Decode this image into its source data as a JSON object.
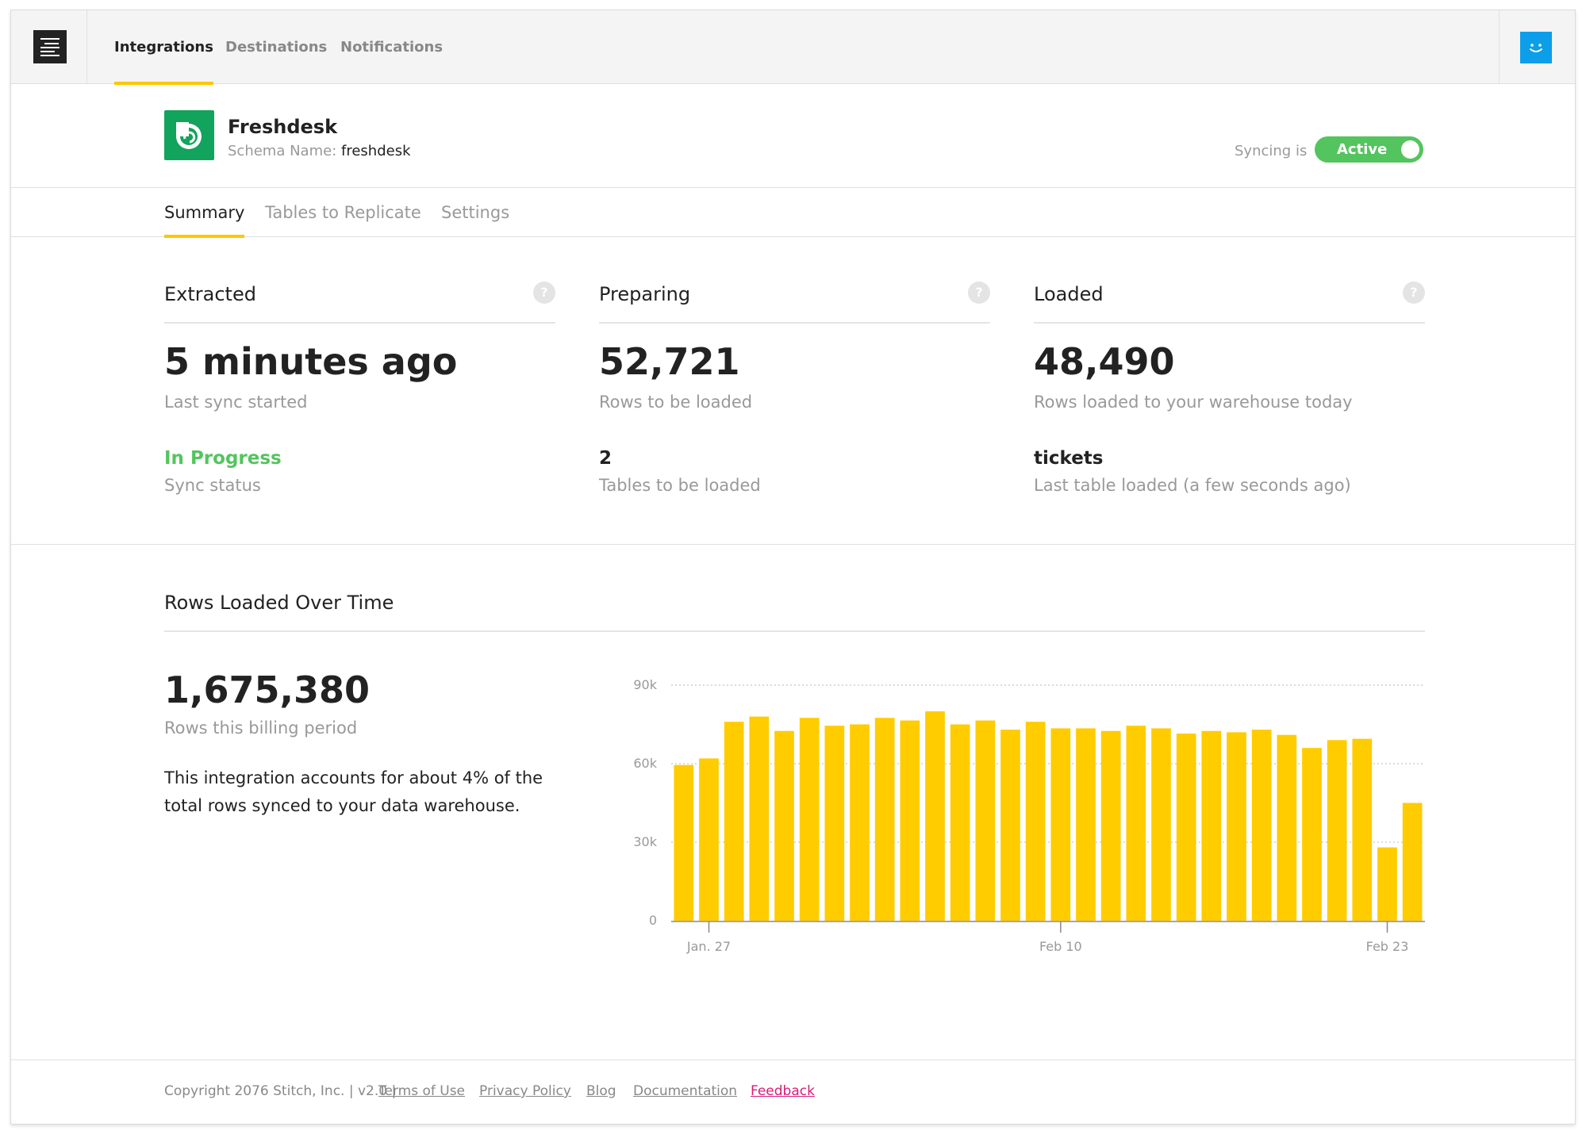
{
  "nav": {
    "items": [
      {
        "label": "Integrations",
        "active": true
      },
      {
        "label": "Destinations",
        "active": false
      },
      {
        "label": "Notifications",
        "active": false
      }
    ]
  },
  "integration": {
    "name": "Freshdesk",
    "schema_label": "Schema Name:",
    "schema_value": "freshdesk",
    "sync_label": "Syncing is",
    "sync_state": "Active"
  },
  "tabs": [
    {
      "label": "Summary",
      "active": true
    },
    {
      "label": "Tables to Replicate",
      "active": false
    },
    {
      "label": "Settings",
      "active": false
    }
  ],
  "stats": {
    "extracted": {
      "title": "Extracted",
      "big": "5 minutes ago",
      "big_caption": "Last sync started",
      "mid": "In Progress",
      "mid_caption": "Sync status"
    },
    "preparing": {
      "title": "Preparing",
      "big": "52,721",
      "big_caption": "Rows to be loaded",
      "mid": "2",
      "mid_caption": "Tables to be loaded"
    },
    "loaded": {
      "title": "Loaded",
      "big": "48,490",
      "big_caption": "Rows loaded to your warehouse today",
      "mid": "tickets",
      "mid_caption": "Last table loaded (a few seconds ago)"
    },
    "help_glyph": "?"
  },
  "rows_over_time": {
    "title": "Rows Loaded Over Time",
    "total": "1,675,380",
    "total_caption": "Rows this billing period",
    "blurb": "This integration accounts for about 4% of the total rows synced to your data warehouse."
  },
  "chart_data": {
    "type": "bar",
    "title": "",
    "xlabel": "",
    "ylabel": "",
    "ylim": [
      0,
      90000
    ],
    "yticks": [
      0,
      30000,
      60000,
      90000
    ],
    "ytick_labels": [
      "0",
      "30k",
      "60k",
      "90k"
    ],
    "grid": true,
    "categories": [
      "Jan 26",
      "Jan 27",
      "Jan 28",
      "Jan 29",
      "Jan 30",
      "Jan 31",
      "Feb 1",
      "Feb 2",
      "Feb 3",
      "Feb 4",
      "Feb 5",
      "Feb 6",
      "Feb 7",
      "Feb 8",
      "Feb 9",
      "Feb 10",
      "Feb 11",
      "Feb 12",
      "Feb 13",
      "Feb 14",
      "Feb 15",
      "Feb 16",
      "Feb 17",
      "Feb 18",
      "Feb 19",
      "Feb 20",
      "Feb 21",
      "Feb 22",
      "Feb 23",
      "Feb 24"
    ],
    "xtick_labels": [
      {
        "category": "Jan 27",
        "label": "Jan. 27"
      },
      {
        "category": "Feb 10",
        "label": "Feb 10"
      },
      {
        "category": "Feb 23",
        "label": "Feb 23"
      }
    ],
    "values": [
      59500,
      62000,
      76000,
      78000,
      72500,
      77500,
      74500,
      75000,
      77500,
      76500,
      80000,
      75000,
      76500,
      73000,
      76000,
      73500,
      73500,
      72500,
      74500,
      73500,
      71500,
      72500,
      72000,
      73000,
      71000,
      66000,
      69000,
      69500,
      28000,
      45000
    ],
    "color": "#ffcc00"
  },
  "footer": {
    "copyright": "Copyright 2076 Stitch, Inc. | v2.0 |",
    "links": [
      "Terms of Use",
      "Privacy Policy",
      "Blog",
      "Documentation",
      "Feedback"
    ]
  },
  "colors": {
    "accent": "#ffc600",
    "active_green": "#54c45e",
    "avatar_blue": "#0d9eea",
    "freshdesk_green": "#12a35c",
    "feedback_pink": "#d81b7a"
  },
  "icons": {
    "logo": "stitch-logo-icon",
    "avatar": "smiley-avatar-icon",
    "app": "freshdesk-logo-icon",
    "help": "help-icon"
  }
}
